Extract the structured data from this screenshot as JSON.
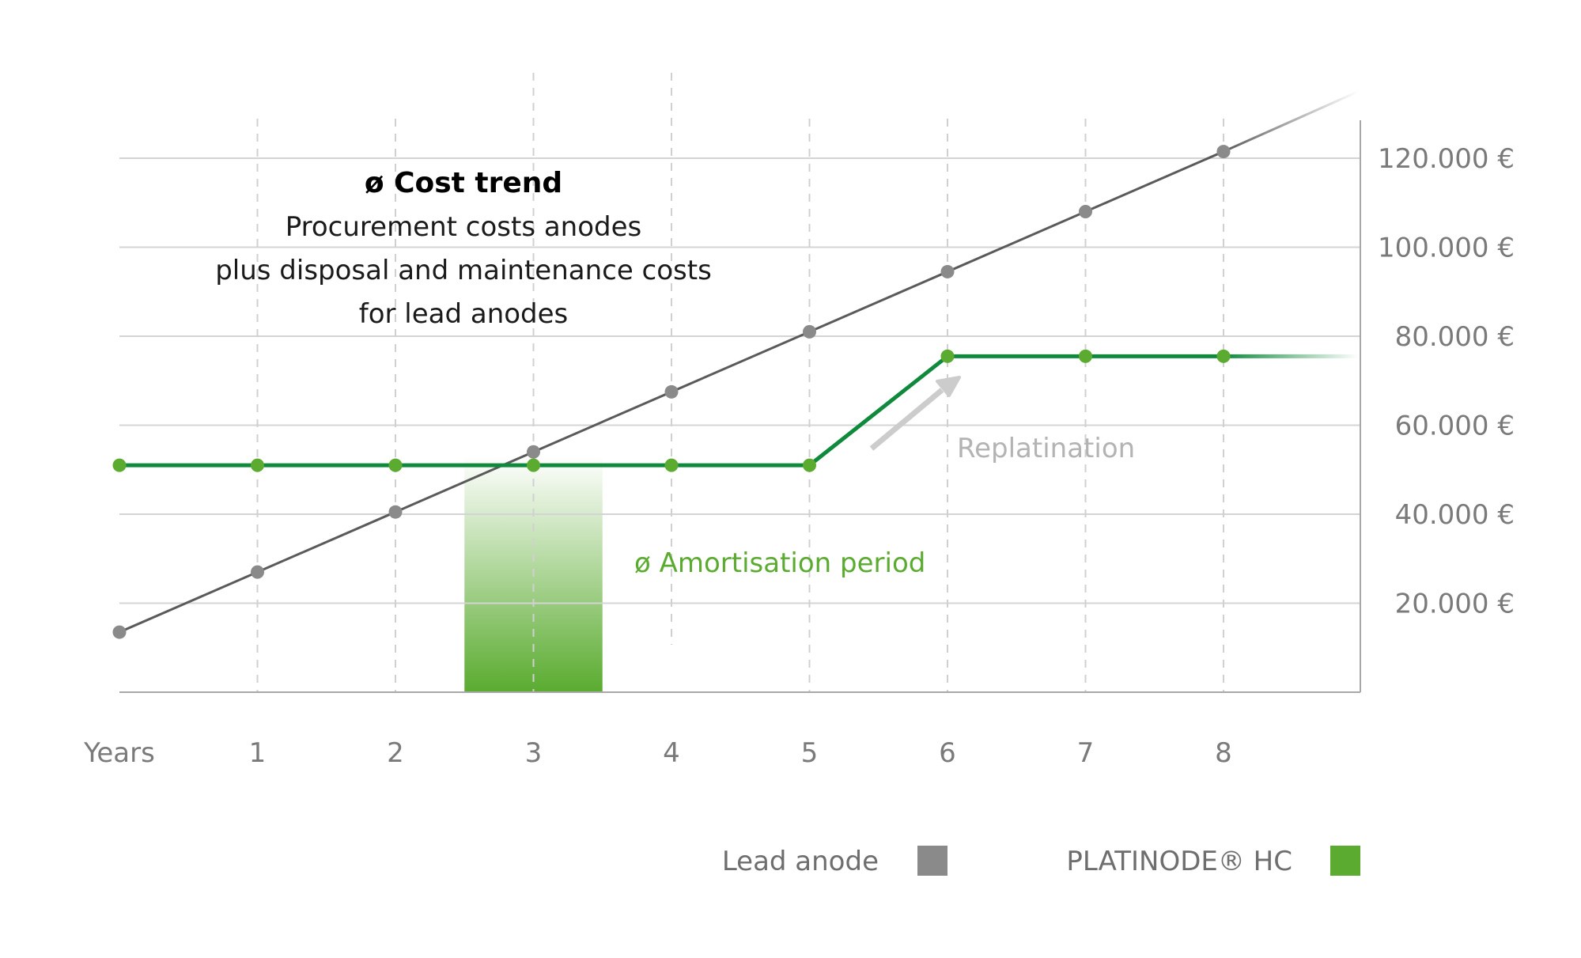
{
  "chart_data": {
    "type": "line",
    "x": [
      0,
      1,
      2,
      3,
      4,
      5,
      6,
      7,
      8
    ],
    "x_tick_labels": [
      "Years",
      "1",
      "2",
      "3",
      "4",
      "5",
      "6",
      "7",
      "8"
    ],
    "y_tick_labels": [
      "20.000 €",
      "40.000 €",
      "60.000 €",
      "80.000 €",
      "100.000 €",
      "120.000 €"
    ],
    "y_ticks": [
      20000,
      40000,
      60000,
      80000,
      100000,
      120000
    ],
    "ylim": [
      0,
      130000
    ],
    "grid": true,
    "series": [
      {
        "name": "Lead anode",
        "color": "#5a5a5a",
        "marker_color": "#8a8a8a",
        "values": [
          13500,
          27000,
          40500,
          54000,
          67500,
          81000,
          94500,
          108000,
          121500
        ]
      },
      {
        "name": "PLATINODE® HC",
        "color": "#0f8a3c",
        "marker_color": "#5aab2f",
        "values": [
          51000,
          51000,
          51000,
          51000,
          51000,
          51000,
          75500,
          75500,
          75500
        ]
      }
    ],
    "highlight_band": {
      "x_from": 2.5,
      "x_to": 3.5,
      "color": "#5aab2f"
    },
    "title": {
      "bold": "ø Cost trend",
      "lines": [
        "Procurement costs anodes",
        "plus disposal and maintenance costs",
        "for lead anodes"
      ]
    },
    "annotations": {
      "replatination": "Replatination",
      "amortisation": "ø Amortisation period"
    },
    "legend": {
      "position": "bottom-right",
      "items": [
        {
          "label": "Lead anode",
          "color": "#8a8a8a"
        },
        {
          "label": "PLATINODE® HC",
          "color": "#5aab2f"
        }
      ]
    }
  }
}
